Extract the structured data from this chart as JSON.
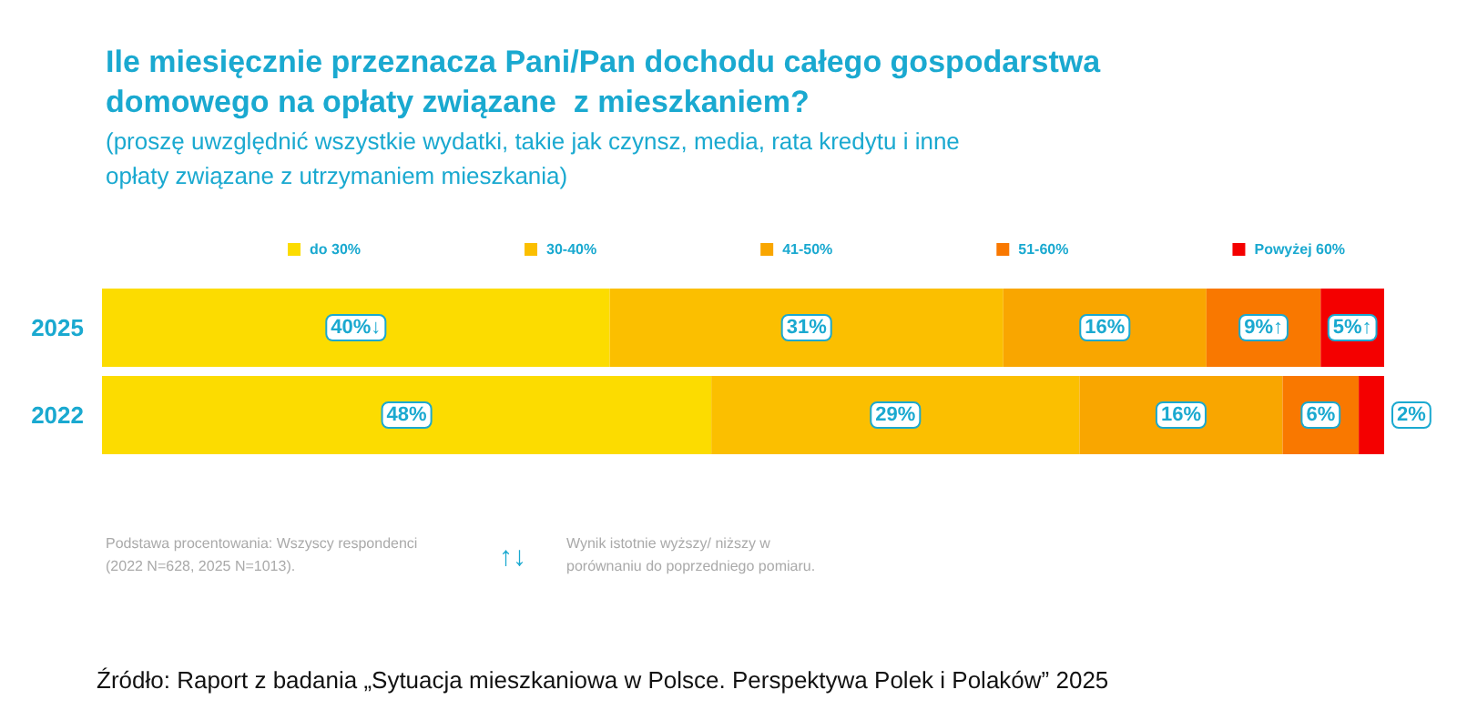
{
  "chart_data": {
    "type": "bar",
    "orientation": "horizontal",
    "stacked": true,
    "title": "Ile miesięcznie przeznacza Pani/Pan dochodu całego gospodarstwa domowego na opłaty związane  z mieszkaniem?",
    "subtitle": "(proszę uwzględnić wszystkie wydatki, takie jak czynsz, media, rata kredytu i inne opłaty związane z utrzymaniem mieszkania)",
    "categories": [
      "2025",
      "2022"
    ],
    "series": [
      {
        "name": "do 30%",
        "color": "#fcdc00",
        "values": [
          40,
          48
        ],
        "value_labels": [
          "40%↓",
          "48%"
        ]
      },
      {
        "name": "30-40%",
        "color": "#fbbf00",
        "values": [
          31,
          29
        ],
        "value_labels": [
          "31%",
          "29%"
        ]
      },
      {
        "name": "41-50%",
        "color": "#f9a600",
        "values": [
          16,
          16
        ],
        "value_labels": [
          "16%",
          "16%"
        ]
      },
      {
        "name": "51-60%",
        "color": "#f97800",
        "values": [
          9,
          6
        ],
        "value_labels": [
          "9%↑",
          "6%"
        ]
      },
      {
        "name": "Powyżej 60%",
        "color": "#f40000",
        "values": [
          5,
          2
        ],
        "value_labels": [
          "5%↑",
          "2%"
        ]
      }
    ],
    "legend": "top",
    "tick_labels": "y",
    "annotations": [
      "Podstawa procentowania: Wszyscy respondenci (2022 N=628, 2025 N=1013).",
      "↑↓",
      "Wynik istotnie wyższy/ niższy w porównaniu do poprzedniego pomiaru.",
      "Źródło: Raport z badania „Sytuacja mieszkaniowa w Polsce. Perspektywa Polek i Polaków” 2025"
    ]
  }
}
